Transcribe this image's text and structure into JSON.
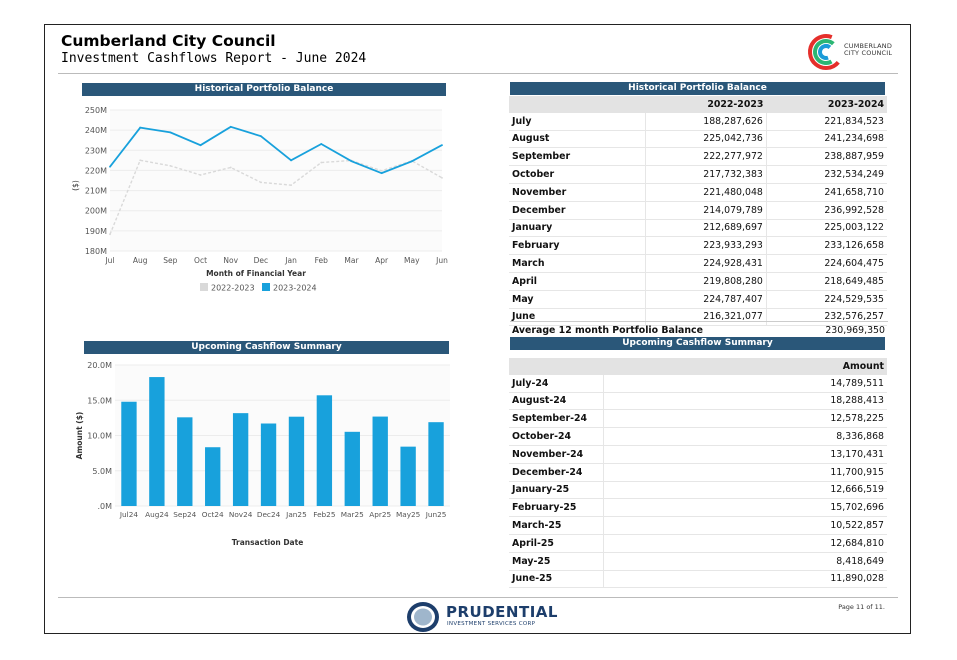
{
  "header": {
    "title": "Cumberland City Council",
    "subtitle": "Investment Cashflows Report - June 2024",
    "logo_line1": "CUMBERLAND",
    "logo_line2": "CITY COUNCIL"
  },
  "chart_data": [
    {
      "type": "line",
      "title": "Historical Portfolio Balance",
      "xlabel": "Month of Financial Year",
      "ylabel": "($)",
      "categories": [
        "Jul",
        "Aug",
        "Sep",
        "Oct",
        "Nov",
        "Dec",
        "Jan",
        "Feb",
        "Mar",
        "Apr",
        "May",
        "Jun"
      ],
      "y_ticks": [
        "180M",
        "190M",
        "200M",
        "210M",
        "220M",
        "230M",
        "240M",
        "250M"
      ],
      "ylim": [
        180000000,
        250000000
      ],
      "legend": "bottom",
      "series": [
        {
          "name": "2022-2023",
          "color": "#d9d9d9",
          "values": [
            188287626,
            225042736,
            222277972,
            217732383,
            221480048,
            214079789,
            212689697,
            223933293,
            224928431,
            219808280,
            224787407,
            216321077
          ]
        },
        {
          "name": "2023-2024",
          "color": "#18a1dc",
          "values": [
            221834523,
            241234698,
            238887959,
            232534249,
            241658710,
            236992528,
            225003122,
            233126658,
            224604475,
            218649485,
            224529535,
            232576257
          ]
        }
      ]
    },
    {
      "type": "bar",
      "title": "Upcoming Cashflow Summary",
      "xlabel": "Transaction Date",
      "ylabel": "Amount ($)",
      "categories": [
        "Jul24",
        "Aug24",
        "Sep24",
        "Oct24",
        "Nov24",
        "Dec24",
        "Jan25",
        "Feb25",
        "Mar25",
        "Apr25",
        "May25",
        "Jun25"
      ],
      "y_ticks": [
        ".0M",
        "5.0M",
        "10.0M",
        "15.0M",
        "20.0M"
      ],
      "ylim": [
        0,
        20000000
      ],
      "color": "#18a1dc",
      "values": [
        14789511,
        18288413,
        12578225,
        8336868,
        13170431,
        11700915,
        12666519,
        15702696,
        10522857,
        12684810,
        8418649,
        11890028
      ]
    }
  ],
  "historical_table": {
    "title": "Historical Portfolio Balance",
    "col1": "2022-2023",
    "col2": "2023-2024",
    "rows": [
      {
        "month": "July",
        "a": "188,287,626",
        "b": "221,834,523"
      },
      {
        "month": "August",
        "a": "225,042,736",
        "b": "241,234,698"
      },
      {
        "month": "September",
        "a": "222,277,972",
        "b": "238,887,959"
      },
      {
        "month": "October",
        "a": "217,732,383",
        "b": "232,534,249"
      },
      {
        "month": "November",
        "a": "221,480,048",
        "b": "241,658,710"
      },
      {
        "month": "December",
        "a": "214,079,789",
        "b": "236,992,528"
      },
      {
        "month": "January",
        "a": "212,689,697",
        "b": "225,003,122"
      },
      {
        "month": "February",
        "a": "223,933,293",
        "b": "233,126,658"
      },
      {
        "month": "March",
        "a": "224,928,431",
        "b": "224,604,475"
      },
      {
        "month": "April",
        "a": "219,808,280",
        "b": "218,649,485"
      },
      {
        "month": "May",
        "a": "224,787,407",
        "b": "224,529,535"
      },
      {
        "month": "June",
        "a": "216,321,077",
        "b": "232,576,257"
      }
    ],
    "avg_label": "Average 12 month Portfolio Balance",
    "avg_value": "230,969,350"
  },
  "cashflow_table": {
    "title": "Upcoming Cashflow Summary",
    "col": "Amount",
    "rows": [
      {
        "month": "July-24",
        "amount": "14,789,511"
      },
      {
        "month": "August-24",
        "amount": "18,288,413"
      },
      {
        "month": "September-24",
        "amount": "12,578,225"
      },
      {
        "month": "October-24",
        "amount": "8,336,868"
      },
      {
        "month": "November-24",
        "amount": "13,170,431"
      },
      {
        "month": "December-24",
        "amount": "11,700,915"
      },
      {
        "month": "January-25",
        "amount": "12,666,519"
      },
      {
        "month": "February-25",
        "amount": "15,702,696"
      },
      {
        "month": "March-25",
        "amount": "10,522,857"
      },
      {
        "month": "April-25",
        "amount": "12,684,810"
      },
      {
        "month": "May-25",
        "amount": "8,418,649"
      },
      {
        "month": "June-25",
        "amount": "11,890,028"
      }
    ]
  },
  "footer": {
    "page": "Page 11 of 11.",
    "brand": "PRUDENTIAL",
    "brand_sub": "INVESTMENT SERVICES CORP"
  }
}
